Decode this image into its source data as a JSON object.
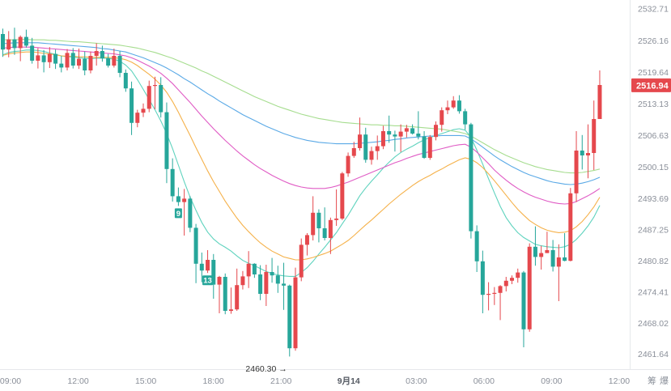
{
  "chart_data": {
    "type": "candlestick",
    "y_ticks": [
      "2532.71",
      "2526.16",
      "2519.64",
      "2513.13",
      "2506.63",
      "2500.15",
      "2493.69",
      "2487.25",
      "2480.82",
      "2474.41",
      "2468.02",
      "2461.64"
    ],
    "ylim": [
      2458.5,
      2534.5
    ],
    "x_ticks": [
      {
        "label": "09:00",
        "t": 0,
        "bold": false
      },
      {
        "label": "12:00",
        "t": 3,
        "bold": false
      },
      {
        "label": "15:00",
        "t": 6,
        "bold": false
      },
      {
        "label": "18:00",
        "t": 9,
        "bold": false
      },
      {
        "label": "21:00",
        "t": 12,
        "bold": false
      },
      {
        "label": "9月14",
        "t": 15,
        "bold": true
      },
      {
        "label": "03:00",
        "t": 18,
        "bold": false
      },
      {
        "label": "06:00",
        "t": 21,
        "bold": false
      },
      {
        "label": "09:00",
        "t": 24,
        "bold": false
      },
      {
        "label": "12:00",
        "t": 27,
        "bold": false
      }
    ],
    "current_price": "2516.94",
    "current_price_value": 2516.94,
    "low_annotation": {
      "label": "2460.30 →",
      "value": 2460.3
    },
    "sequence_markers": [
      {
        "label": "9",
        "index": 30
      },
      {
        "label": "13",
        "index": 35
      }
    ],
    "colors": {
      "up": "#e5484d",
      "down": "#26a69a",
      "ma1": "#5fd3be",
      "ma2": "#f5b14a",
      "ma3": "#e05cc5",
      "ma4": "#5aa9e6",
      "ma5": "#a6dd8f"
    },
    "candles": [
      [
        2527.5,
        2528.6,
        2522.8,
        2524.3
      ],
      [
        2524.3,
        2528.1,
        2522.7,
        2526.4
      ],
      [
        2526.4,
        2528.8,
        2523.2,
        2524.6
      ],
      [
        2524.6,
        2527.2,
        2521.9,
        2526.9
      ],
      [
        2526.9,
        2528.4,
        2524.7,
        2525.1
      ],
      [
        2525.1,
        2526.7,
        2521.4,
        2522.0
      ],
      [
        2522.0,
        2524.6,
        2520.4,
        2523.1
      ],
      [
        2523.1,
        2524.2,
        2519.6,
        2521.7
      ],
      [
        2521.7,
        2524.8,
        2520.5,
        2523.4
      ],
      [
        2523.4,
        2524.3,
        2520.3,
        2521.4
      ],
      [
        2521.4,
        2523.0,
        2519.6,
        2520.6
      ],
      [
        2520.6,
        2524.4,
        2520.0,
        2523.6
      ],
      [
        2523.6,
        2524.6,
        2520.4,
        2521.0
      ],
      [
        2521.0,
        2524.5,
        2520.3,
        2522.4
      ],
      [
        2522.4,
        2523.9,
        2519.0,
        2520.0
      ],
      [
        2520.0,
        2523.9,
        2519.4,
        2523.0
      ],
      [
        2523.0,
        2525.6,
        2521.0,
        2524.0
      ],
      [
        2524.0,
        2525.1,
        2521.8,
        2522.5
      ],
      [
        2522.5,
        2523.4,
        2520.6,
        2521.0
      ],
      [
        2521.0,
        2524.5,
        2520.6,
        2523.0
      ],
      [
        2523.0,
        2524.0,
        2518.6,
        2519.5
      ],
      [
        2519.5,
        2520.2,
        2515.6,
        2516.3
      ],
      [
        2516.3,
        2517.7,
        2506.7,
        2509.2
      ],
      [
        2509.2,
        2511.9,
        2508.3,
        2511.3
      ],
      [
        2511.3,
        2513.2,
        2510.4,
        2512.1
      ],
      [
        2512.1,
        2517.9,
        2511.4,
        2516.8
      ],
      [
        2516.8,
        2518.7,
        2512.0,
        2517.0
      ],
      [
        2517.0,
        2518.6,
        2510.3,
        2511.4
      ],
      [
        2511.4,
        2513.4,
        2496.8,
        2499.7
      ],
      [
        2499.7,
        2501.9,
        2493.0,
        2494.1
      ],
      [
        2494.1,
        2495.9,
        2492.1,
        2492.9
      ],
      [
        2492.9,
        2495.6,
        2486.0,
        2493.6
      ],
      [
        2493.6,
        2494.1,
        2486.7,
        2487.6
      ],
      [
        2487.6,
        2488.4,
        2476.2,
        2480.2
      ],
      [
        2480.2,
        2482.5,
        2476.4,
        2478.8
      ],
      [
        2478.8,
        2483.0,
        2478.3,
        2481.0
      ],
      [
        2481.0,
        2482.2,
        2473.0,
        2475.9
      ],
      [
        2475.9,
        2477.7,
        2470.0,
        2477.5
      ],
      [
        2477.5,
        2478.2,
        2469.8,
        2470.5
      ],
      [
        2470.5,
        2475.3,
        2469.9,
        2470.8
      ],
      [
        2470.8,
        2479.2,
        2470.5,
        2475.8
      ],
      [
        2475.8,
        2478.7,
        2474.9,
        2477.6
      ],
      [
        2477.6,
        2482.8,
        2475.2,
        2480.2
      ],
      [
        2480.2,
        2480.3,
        2477.3,
        2478.0
      ],
      [
        2478.0,
        2479.9,
        2472.7,
        2474.0
      ],
      [
        2474.0,
        2480.0,
        2471.5,
        2478.5
      ],
      [
        2478.5,
        2481.4,
        2476.3,
        2477.8
      ],
      [
        2477.8,
        2479.8,
        2474.2,
        2476.1
      ],
      [
        2476.1,
        2480.4,
        2470.7,
        2475.7
      ],
      [
        2475.7,
        2475.9,
        2461.1,
        2462.8
      ],
      [
        2462.8,
        2479.4,
        2462.3,
        2477.4
      ],
      [
        2477.4,
        2485.4,
        2476.6,
        2484.1
      ],
      [
        2484.1,
        2486.5,
        2481.9,
        2486.1
      ],
      [
        2486.1,
        2494.1,
        2485.0,
        2490.7
      ],
      [
        2490.7,
        2491.4,
        2484.6,
        2487.5
      ],
      [
        2487.5,
        2491.8,
        2485.0,
        2485.5
      ],
      [
        2485.5,
        2489.7,
        2482.2,
        2489.2
      ],
      [
        2489.2,
        2495.5,
        2488.0,
        2489.5
      ],
      [
        2489.5,
        2499.1,
        2489.2,
        2498.8
      ],
      [
        2498.8,
        2503.1,
        2498.1,
        2502.4
      ],
      [
        2502.4,
        2505.3,
        2502.0,
        2504.0
      ],
      [
        2504.0,
        2510.3,
        2503.5,
        2506.8
      ],
      [
        2506.8,
        2508.2,
        2501.0,
        2501.6
      ],
      [
        2501.6,
        2504.3,
        2500.6,
        2503.4
      ],
      [
        2503.4,
        2506.6,
        2501.6,
        2504.4
      ],
      [
        2504.4,
        2508.6,
        2503.8,
        2507.5
      ],
      [
        2507.5,
        2510.7,
        2505.1,
        2506.8
      ],
      [
        2506.8,
        2507.6,
        2503.3,
        2506.4
      ],
      [
        2506.4,
        2508.9,
        2503.2,
        2507.4
      ],
      [
        2507.4,
        2508.8,
        2506.2,
        2508.1
      ],
      [
        2508.1,
        2508.9,
        2506.8,
        2507.0
      ],
      [
        2507.0,
        2511.6,
        2505.8,
        2506.4
      ],
      [
        2506.4,
        2507.5,
        2501.8,
        2502.0
      ],
      [
        2502.0,
        2506.7,
        2501.6,
        2506.3
      ],
      [
        2506.3,
        2509.5,
        2505.6,
        2508.8
      ],
      [
        2508.8,
        2512.4,
        2507.4,
        2511.8
      ],
      [
        2511.8,
        2513.8,
        2511.0,
        2512.4
      ],
      [
        2512.4,
        2514.7,
        2512.1,
        2513.8
      ],
      [
        2513.8,
        2514.9,
        2511.1,
        2511.6
      ],
      [
        2511.6,
        2512.1,
        2507.8,
        2508.9
      ],
      [
        2508.9,
        2509.2,
        2485.4,
        2486.9
      ],
      [
        2486.9,
        2488.1,
        2478.5,
        2480.7
      ],
      [
        2480.7,
        2482.9,
        2470.0,
        2473.8
      ],
      [
        2473.8,
        2476.4,
        2470.6,
        2474.0
      ],
      [
        2474.0,
        2475.4,
        2471.7,
        2474.2
      ],
      [
        2474.2,
        2475.8,
        2468.6,
        2475.6
      ],
      [
        2475.6,
        2477.5,
        2474.5,
        2476.7
      ],
      [
        2476.7,
        2477.8,
        2476.0,
        2477.3
      ],
      [
        2477.3,
        2479.2,
        2476.3,
        2478.4
      ],
      [
        2478.4,
        2478.7,
        2463.0,
        2466.7
      ],
      [
        2466.7,
        2484.4,
        2466.2,
        2483.7
      ],
      [
        2483.7,
        2487.9,
        2479.8,
        2481.6
      ],
      [
        2481.6,
        2483.9,
        2479.0,
        2482.4
      ],
      [
        2482.4,
        2486.8,
        2482.4,
        2483.0
      ],
      [
        2483.0,
        2485.1,
        2478.6,
        2479.6
      ],
      [
        2479.6,
        2484.2,
        2472.5,
        2481.5
      ],
      [
        2481.5,
        2486.5,
        2480.7,
        2480.8
      ],
      [
        2480.8,
        2495.8,
        2480.7,
        2494.7
      ],
      [
        2494.7,
        2507.5,
        2492.9,
        2503.5
      ],
      [
        2503.5,
        2506.7,
        2499.6,
        2502.5
      ],
      [
        2502.5,
        2508.9,
        2497.8,
        2503.0
      ],
      [
        2503.0,
        2513.8,
        2499.5,
        2510.0
      ],
      [
        2510.0,
        2520.0,
        2510.0,
        2517.0
      ]
    ],
    "series": [
      {
        "key": "ma1",
        "values": [
          2523.2,
          2523.7,
          2523.9,
          2524.0,
          2524.2,
          2524.2,
          2524.1,
          2523.9,
          2523.6,
          2523.3,
          2523.0,
          2522.8,
          2522.8,
          2522.6,
          2522.5,
          2522.4,
          2522.5,
          2522.5,
          2522.5,
          2522.3,
          2521.9,
          2521.1,
          2519.9,
          2518.1,
          2516.1,
          2514.0,
          2511.9,
          2509.6,
          2507.0,
          2503.9,
          2500.5,
          2497.1,
          2493.9,
          2491.2,
          2488.7,
          2486.7,
          2485.3,
          2484.3,
          2483.6,
          2482.8,
          2481.8,
          2480.9,
          2480.3,
          2479.8,
          2479.2,
          2478.6,
          2478.2,
          2477.9,
          2477.7,
          2477.6,
          2477.6,
          2478.4,
          2479.4,
          2480.7,
          2482.2,
          2483.6,
          2485.1,
          2486.6,
          2488.4,
          2490.2,
          2492.2,
          2494.2,
          2495.8,
          2497.2,
          2498.5,
          2499.9,
          2501.1,
          2502.2,
          2503.1,
          2503.8,
          2504.4,
          2505.1,
          2505.7,
          2506.2,
          2506.6,
          2507.0,
          2507.4,
          2507.8,
          2508.0,
          2507.7,
          2506.2,
          2503.6,
          2500.7,
          2497.7,
          2494.8,
          2492.0,
          2489.7,
          2488.0,
          2486.6,
          2485.6,
          2484.9,
          2484.2,
          2483.9,
          2483.7,
          2483.6,
          2483.5,
          2483.7,
          2484.2,
          2485.2,
          2486.5,
          2488.0,
          2489.8,
          2492.2
        ]
      },
      {
        "key": "ma2",
        "values": [
          2523.1,
          2523.4,
          2523.6,
          2523.7,
          2523.8,
          2523.8,
          2523.7,
          2523.5,
          2523.4,
          2523.2,
          2523.0,
          2522.9,
          2522.9,
          2522.8,
          2522.8,
          2522.7,
          2522.7,
          2522.7,
          2522.7,
          2522.6,
          2522.5,
          2522.2,
          2521.7,
          2521.0,
          2520.1,
          2519.2,
          2518.2,
          2517.0,
          2515.5,
          2513.6,
          2511.4,
          2509.0,
          2506.6,
          2504.1,
          2501.7,
          2499.3,
          2497.1,
          2495.1,
          2493.1,
          2491.3,
          2489.6,
          2488.1,
          2486.8,
          2485.6,
          2484.5,
          2483.6,
          2482.8,
          2482.2,
          2481.6,
          2481.3,
          2481.0,
          2481.0,
          2481.2,
          2481.5,
          2481.9,
          2482.3,
          2482.8,
          2483.5,
          2484.2,
          2485.0,
          2486.0,
          2487.1,
          2488.2,
          2489.2,
          2490.3,
          2491.4,
          2492.5,
          2493.5,
          2494.5,
          2495.4,
          2496.3,
          2497.1,
          2497.8,
          2498.4,
          2499.1,
          2499.7,
          2500.4,
          2501.0,
          2501.6,
          2502.0,
          2501.7,
          2501.0,
          2500.0,
          2498.7,
          2497.3,
          2495.8,
          2494.3,
          2492.8,
          2491.4,
          2490.2,
          2489.1,
          2488.3,
          2487.6,
          2487.1,
          2486.8,
          2486.6,
          2486.7,
          2487.0,
          2487.8,
          2488.9,
          2490.3,
          2491.9,
          2493.9
        ]
      },
      {
        "key": "ma3",
        "values": [
          2524.6,
          2524.7,
          2524.8,
          2524.8,
          2524.8,
          2524.8,
          2524.7,
          2524.6,
          2524.5,
          2524.4,
          2524.3,
          2524.2,
          2524.1,
          2524.0,
          2523.9,
          2523.8,
          2523.7,
          2523.6,
          2523.5,
          2523.4,
          2523.2,
          2523.0,
          2522.6,
          2522.1,
          2521.5,
          2520.9,
          2520.2,
          2519.4,
          2518.4,
          2517.3,
          2516.0,
          2514.7,
          2513.4,
          2512.0,
          2510.6,
          2509.3,
          2508.0,
          2506.8,
          2505.6,
          2504.5,
          2503.4,
          2502.4,
          2501.5,
          2500.6,
          2499.8,
          2499.1,
          2498.4,
          2497.8,
          2497.2,
          2496.7,
          2496.3,
          2496.0,
          2495.8,
          2495.7,
          2495.7,
          2495.7,
          2495.9,
          2496.2,
          2496.6,
          2497.0,
          2497.5,
          2498.0,
          2498.5,
          2499.0,
          2499.5,
          2500.0,
          2500.5,
          2501.0,
          2501.4,
          2501.9,
          2502.3,
          2502.7,
          2503.0,
          2503.3,
          2503.6,
          2503.9,
          2504.2,
          2504.5,
          2504.7,
          2504.8,
          2504.2,
          2503.2,
          2502.0,
          2500.8,
          2499.5,
          2498.4,
          2497.4,
          2496.5,
          2495.7,
          2495.0,
          2494.4,
          2493.9,
          2493.5,
          2493.1,
          2492.8,
          2492.6,
          2492.5,
          2492.6,
          2493.0,
          2493.6,
          2494.2,
          2494.9,
          2495.7
        ]
      },
      {
        "key": "ma4",
        "values": [
          2525.5,
          2525.6,
          2525.7,
          2525.7,
          2525.7,
          2525.7,
          2525.7,
          2525.6,
          2525.5,
          2525.4,
          2525.3,
          2525.2,
          2525.1,
          2525.0,
          2524.9,
          2524.8,
          2524.7,
          2524.5,
          2524.4,
          2524.2,
          2524.0,
          2523.8,
          2523.4,
          2523.0,
          2522.6,
          2522.1,
          2521.6,
          2521.1,
          2520.5,
          2519.8,
          2519.1,
          2518.3,
          2517.6,
          2516.8,
          2516.0,
          2515.2,
          2514.5,
          2513.7,
          2513.0,
          2512.3,
          2511.6,
          2510.9,
          2510.3,
          2509.7,
          2509.1,
          2508.5,
          2508.0,
          2507.5,
          2507.0,
          2506.6,
          2506.2,
          2505.9,
          2505.6,
          2505.4,
          2505.2,
          2505.1,
          2505.0,
          2504.9,
          2504.9,
          2504.9,
          2504.9,
          2505.0,
          2505.1,
          2505.2,
          2505.3,
          2505.5,
          2505.6,
          2505.8,
          2505.9,
          2506.1,
          2506.2,
          2506.3,
          2506.4,
          2506.5,
          2506.5,
          2506.6,
          2506.6,
          2506.6,
          2506.6,
          2506.5,
          2505.9,
          2505.1,
          2504.2,
          2503.3,
          2502.4,
          2501.6,
          2500.9,
          2500.2,
          2499.6,
          2499.0,
          2498.5,
          2498.1,
          2497.7,
          2497.3,
          2497.0,
          2496.8,
          2496.6,
          2496.5,
          2496.6,
          2496.8,
          2497.1,
          2497.5,
          2498.0
        ]
      },
      {
        "key": "ma5",
        "values": [
          2526.3,
          2526.3,
          2526.3,
          2526.4,
          2526.4,
          2526.3,
          2526.3,
          2526.3,
          2526.2,
          2526.2,
          2526.1,
          2526.0,
          2525.9,
          2525.9,
          2525.8,
          2525.7,
          2525.6,
          2525.5,
          2525.4,
          2525.3,
          2525.2,
          2525.0,
          2524.8,
          2524.6,
          2524.3,
          2524.0,
          2523.7,
          2523.3,
          2522.9,
          2522.5,
          2522.0,
          2521.5,
          2521.0,
          2520.5,
          2519.9,
          2519.4,
          2518.8,
          2518.2,
          2517.6,
          2517.0,
          2516.4,
          2515.8,
          2515.2,
          2514.6,
          2514.1,
          2513.6,
          2513.1,
          2512.6,
          2512.2,
          2511.8,
          2511.4,
          2511.0,
          2510.7,
          2510.4,
          2510.1,
          2509.9,
          2509.7,
          2509.5,
          2509.3,
          2509.2,
          2509.1,
          2509.0,
          2508.9,
          2508.8,
          2508.8,
          2508.7,
          2508.7,
          2508.6,
          2508.6,
          2508.5,
          2508.4,
          2508.3,
          2508.2,
          2508.1,
          2508.0,
          2507.9,
          2507.7,
          2507.5,
          2507.3,
          2507.0,
          2506.5,
          2505.8,
          2505.1,
          2504.4,
          2503.7,
          2503.1,
          2502.5,
          2502.0,
          2501.5,
          2501.0,
          2500.6,
          2500.2,
          2499.9,
          2499.6,
          2499.4,
          2499.2,
          2499.0,
          2498.9,
          2498.9,
          2499.0,
          2499.2,
          2499.4,
          2499.7
        ]
      }
    ]
  },
  "ui": {
    "axis_button_1": "筹",
    "axis_button_2": "爆"
  }
}
